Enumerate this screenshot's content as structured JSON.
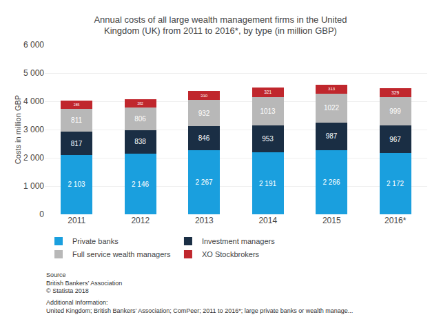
{
  "chart_data": {
    "type": "bar",
    "stacked": true,
    "data_labels": true,
    "grid": true,
    "legend": "bottom",
    "title": "Annual costs of all large wealth management firms in the United\nKingdom (UK) from 2011 to 2016*, by type (in million GBP)",
    "ylabel": "Costs in million GBP",
    "categories": [
      "2011",
      "2012",
      "2013",
      "2014",
      "2015",
      "2016*"
    ],
    "series": [
      {
        "name": "Private banks",
        "color": "#1a9fde",
        "values": [
          2103,
          2146,
          2267,
          2191,
          2266,
          2172
        ],
        "value_labels": [
          "2 103",
          "2 146",
          "2 267",
          "2 191",
          "2 266",
          "2 172"
        ]
      },
      {
        "name": "Investment managers",
        "color": "#1a2e44",
        "values": [
          817,
          838,
          846,
          953,
          987,
          967
        ]
      },
      {
        "name": "Full service wealth managers",
        "color": "#b8b8b8",
        "values": [
          811,
          806,
          932,
          1013,
          1022,
          999
        ]
      },
      {
        "name": "XO Stockbrokers",
        "color": "#c0272d",
        "values": [
          285,
          282,
          310,
          321,
          313,
          329
        ]
      }
    ],
    "ylim": [
      0,
      6000
    ],
    "yticks": [
      0,
      {
        "value": 1000,
        "label": "1 000"
      },
      {
        "value": 2000,
        "label": "2 000"
      },
      {
        "value": 3000,
        "label": "3 000"
      },
      {
        "value": 4000,
        "label": "4 000"
      },
      {
        "value": 5000,
        "label": "5 000"
      },
      {
        "value": 6000,
        "label": "6 000"
      }
    ],
    "annotations": [
      "Source\nBritish Bankers’ Association\n© Statista 2018",
      "Additional Information:\nUnited Kingdom; British Bankers’ Association; ComPeer; 2011 to 2016*; large private banks or wealth manage..."
    ]
  }
}
